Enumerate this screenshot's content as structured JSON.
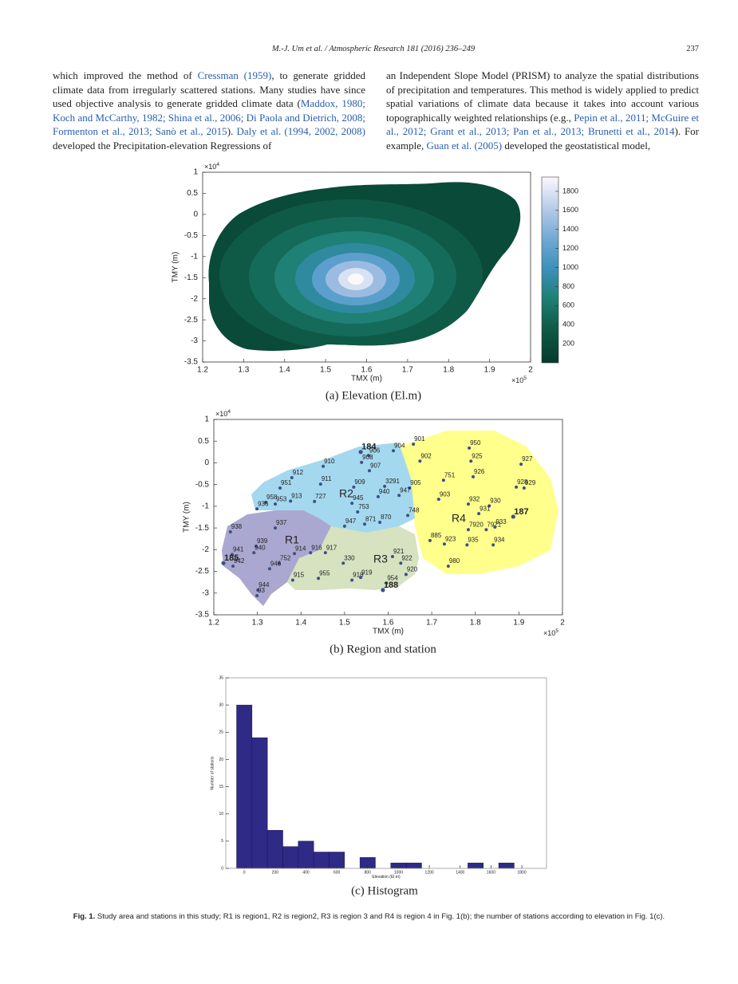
{
  "header": {
    "running_title": "M.-J. Um et al. / Atmospheric Research 181 (2016) 236–249",
    "page_number": "237"
  },
  "body": {
    "columns": [
      [
        "which improved the method of ",
        {
          "cite": "Cressman (1959)"
        },
        ", to generate gridded climate data from irregularly scattered stations. Many studies have since used objective analysis to generate gridded climate data (",
        {
          "cite": "Maddox, 1980; Koch and McCarthy, 1982; Shina et al., 2006; Di Paola and Dietrich, 2008; Formenton et al., 2013; Sanò et al., 2015"
        },
        "). ",
        {
          "cite": "Daly et al. (1994, 2002, 2008)"
        },
        " developed the Precipitation-elevation Regressions of"
      ],
      [
        "an Independent Slope Model (PRISM) to analyze the spatial distributions of precipitation and temperatures. This method is widely applied to predict spatial variations of climate data because it takes into account various topographically weighted relationships (e.g., ",
        {
          "cite": "Pepin et al., 2011; McGuire et al., 2012; Grant et al., 2013; Pan et al., 2013; Brunetti et al., 2014"
        },
        "). For example, ",
        {
          "cite": "Guan et al. (2005)"
        },
        " developed the geostatistical model,"
      ]
    ]
  },
  "figure": {
    "panels": [
      {
        "type": "heatmap",
        "caption": "(a) Elevation (El.m)",
        "xlabel": "TMX (m)",
        "ylabel": "TMY (m)",
        "x_multiplier": {
          "base": "×10",
          "exponent": "5"
        },
        "y_multiplier": {
          "base": "×10",
          "exponent": "4"
        },
        "xlim": [
          1.2,
          2
        ],
        "ylim": [
          -3.5,
          1
        ],
        "xticks": [
          1.2,
          1.3,
          1.4,
          1.5,
          1.6,
          1.7,
          1.8,
          1.9,
          2
        ],
        "yticks": [
          1,
          0.5,
          0,
          -0.5,
          -1,
          -1.5,
          -2,
          -2.5,
          -3,
          -3.5
        ],
        "colorbar": {
          "lim": [
            0,
            1950
          ],
          "ticks": [
            200,
            400,
            600,
            800,
            1000,
            1200,
            1400,
            1600,
            1800
          ]
        }
      },
      {
        "type": "scatter",
        "caption": "(b) Region and station",
        "xlabel": "TMX (m)",
        "ylabel": "TMY (m)",
        "x_multiplier": {
          "base": "×10",
          "exponent": "5"
        },
        "y_multiplier": {
          "base": "×10",
          "exponent": "4"
        },
        "xlim": [
          1.2,
          2
        ],
        "ylim": [
          -3.5,
          1
        ],
        "xticks": [
          1.2,
          1.3,
          1.4,
          1.5,
          1.6,
          1.7,
          1.8,
          1.9,
          2
        ],
        "yticks": [
          1,
          0.5,
          0,
          -0.5,
          -1,
          -1.5,
          -2,
          -2.5,
          -3,
          -3.5
        ],
        "regions": [
          "R1",
          "R2",
          "R3",
          "R4"
        ],
        "stations": {
          "labels": [
            "901",
            "904",
            "906",
            "908",
            "907",
            "910",
            "902",
            "950",
            "925",
            "927",
            "926",
            "751",
            "905",
            "911",
            "912",
            "951",
            "909",
            "3291",
            "940",
            "947",
            "928",
            "929",
            "903",
            "932",
            "930",
            "727",
            "913",
            "958",
            "953",
            "936",
            "945",
            "753",
            "931",
            "748",
            "871",
            "870",
            "947",
            "937",
            "938",
            "7920",
            "7921",
            "933",
            "885",
            "923",
            "935",
            "934",
            "939",
            "940",
            "752",
            "914",
            "916",
            "917",
            "330",
            "921",
            "922",
            "941",
            "942",
            "946",
            "980",
            "920",
            "915",
            "955",
            "918",
            "919",
            "954",
            "944",
            "93"
          ],
          "x": [
            1.658,
            1.612,
            1.555,
            1.539,
            1.557,
            1.451,
            1.673,
            1.786,
            1.79,
            1.905,
            1.795,
            1.727,
            1.649,
            1.445,
            1.379,
            1.352,
            1.521,
            1.592,
            1.577,
            1.625,
            1.894,
            1.912,
            1.716,
            1.784,
            1.832,
            1.431,
            1.376,
            1.319,
            1.341,
            1.299,
            1.517,
            1.53,
            1.808,
            1.645,
            1.546,
            1.581,
            1.5,
            1.341,
            1.238,
            1.784,
            1.825,
            1.845,
            1.696,
            1.729,
            1.781,
            1.841,
            1.297,
            1.292,
            1.35,
            1.385,
            1.422,
            1.456,
            1.497,
            1.61,
            1.629,
            1.242,
            1.244,
            1.328,
            1.738,
            1.641,
            1.381,
            1.44,
            1.517,
            1.537,
            1.596,
            1.301,
            1.299
          ],
          "y": [
            0.43,
            0.28,
            0.17,
            0.01,
            -0.18,
            -0.08,
            0.04,
            0.34,
            0.04,
            -0.03,
            -0.32,
            -0.4,
            -0.58,
            -0.49,
            -0.34,
            -0.58,
            -0.56,
            -0.54,
            -0.78,
            -0.75,
            -0.56,
            -0.58,
            -0.84,
            -0.95,
            -0.99,
            -0.89,
            -0.88,
            -0.91,
            -0.95,
            -1.06,
            -0.93,
            -1.13,
            -1.17,
            -1.21,
            -1.41,
            -1.37,
            -1.46,
            -1.5,
            -1.59,
            -1.54,
            -1.54,
            -1.48,
            -1.79,
            -1.87,
            -1.89,
            -1.89,
            -1.92,
            -2.07,
            -2.31,
            -2.09,
            -2.07,
            -2.07,
            -2.31,
            -2.16,
            -2.31,
            -2.11,
            -2.38,
            -2.44,
            -2.38,
            -2.57,
            -2.7,
            -2.66,
            -2.7,
            -2.64,
            -2.77,
            -2.93,
            -3.06
          ]
        },
        "major_stations": {
          "labels": [
            "184",
            "187",
            "185",
            "188"
          ],
          "x": [
            1.537,
            1.887,
            1.222,
            1.588
          ],
          "y": [
            0.25,
            -1.24,
            -2.31,
            -2.93
          ]
        }
      },
      {
        "type": "histogram",
        "caption": "(c) Histogram",
        "xlabel": "Elevation (El.m)",
        "ylabel": "Number of stations",
        "bins": [
          -50,
          50,
          150,
          250,
          350,
          450,
          550,
          650,
          750,
          850,
          950,
          1050,
          1150,
          1250,
          1350,
          1450,
          1550,
          1650,
          1750
        ],
        "counts": [
          30,
          24,
          7,
          4,
          5,
          3,
          3,
          0,
          2,
          0,
          1,
          1,
          0,
          0,
          0,
          1,
          0,
          1
        ],
        "color": "#2e2a86",
        "xlim": [
          -120,
          1960
        ],
        "ylim": [
          0,
          35
        ],
        "xticks": [
          0,
          200,
          400,
          600,
          800,
          1000,
          1200,
          1400,
          1600,
          1800
        ],
        "yticks": [
          0,
          5,
          10,
          15,
          20,
          25,
          30,
          35
        ]
      }
    ],
    "caption": {
      "label": "Fig. 1.",
      "text": " Study area and stations in this study; R1 is region1, R2 is region2, R3 is region 3 and R4 is region 4 in Fig. 1(b); the number of stations according to elevation in Fig. 1(c)."
    }
  }
}
